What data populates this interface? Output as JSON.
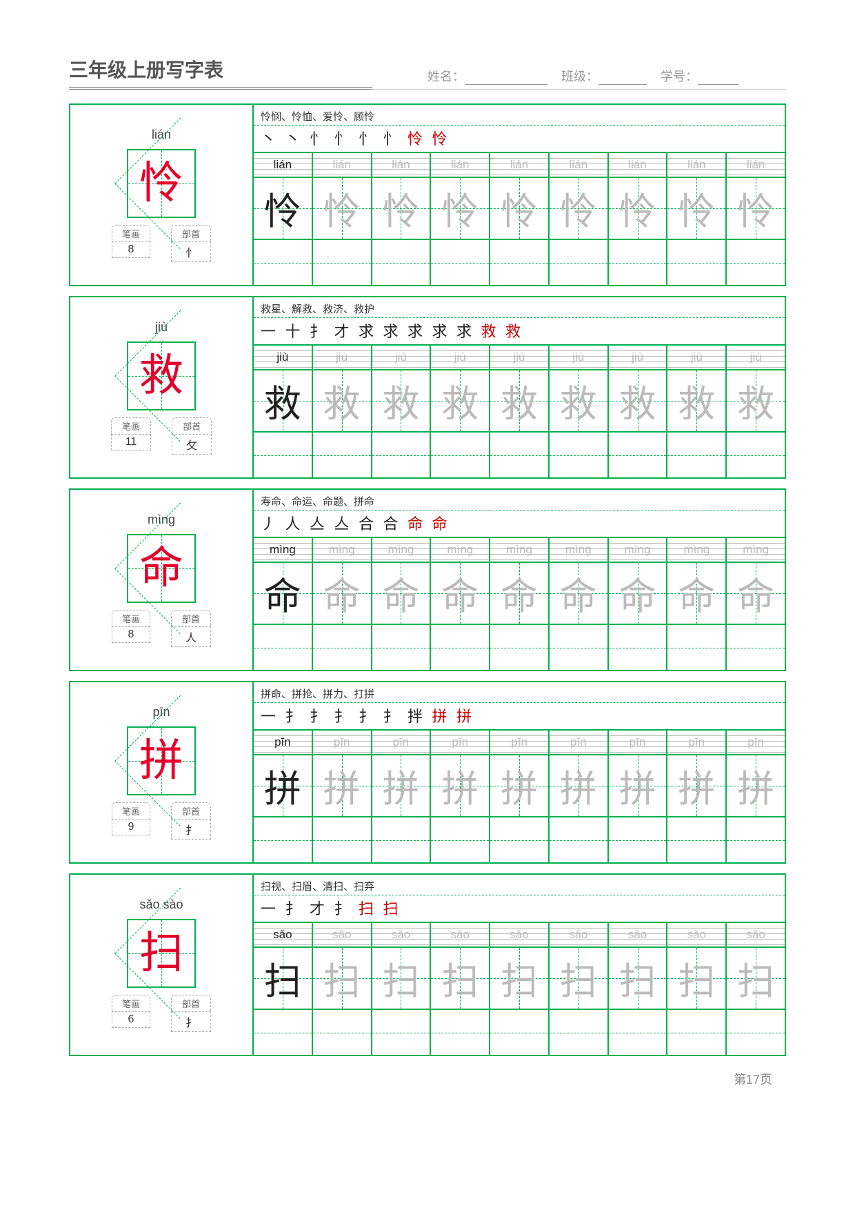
{
  "header": {
    "title": "三年级上册写字表",
    "name_label": "姓名：",
    "class_label": "班级：",
    "id_label": "学号："
  },
  "meta_labels": {
    "strokes": "笔画",
    "radical": "部首"
  },
  "grid": {
    "cols": 9,
    "faded_from": 1
  },
  "colors": {
    "border": "#00b050",
    "accent": "#e4002b",
    "text": "#333",
    "faded": "#bbb"
  },
  "rows": [
    {
      "pinyin": "lián",
      "char": "怜",
      "stroke_count": "8",
      "radical": "忄",
      "words": "怜悯、怜恤、爱怜、顾怜",
      "stroke_seq_dark": "丶 丶 忄 忄 忄 忄",
      "stroke_seq_red": "怜 怜"
    },
    {
      "pinyin": "jiù",
      "char": "救",
      "stroke_count": "11",
      "radical": "攵",
      "words": "救星、解救、救济、救护",
      "stroke_seq_dark": "一 十 扌 才 求 求 求 求 求",
      "stroke_seq_red": "救 救"
    },
    {
      "pinyin": "mìng",
      "char": "命",
      "stroke_count": "8",
      "radical": "人",
      "words": "寿命、命运、命题、拼命",
      "stroke_seq_dark": "丿 人 亼 亼 合 合",
      "stroke_seq_red": "命 命"
    },
    {
      "pinyin": "pīn",
      "char": "拼",
      "stroke_count": "9",
      "radical": "扌",
      "words": "拼命、拼抢、拼力、打拼",
      "stroke_seq_dark": "一 扌 扌 扌 扌 扌 拌",
      "stroke_seq_red": "拼 拼"
    },
    {
      "pinyin": "sǎo  sào",
      "pinyin_grid": "sǎo",
      "char": "扫",
      "stroke_count": "6",
      "radical": "扌",
      "words": "扫视、扫眉、清扫、扫弃",
      "stroke_seq_dark": "一 扌 才 扌",
      "stroke_seq_red": "扫 扫"
    }
  ],
  "footer": "第17页"
}
